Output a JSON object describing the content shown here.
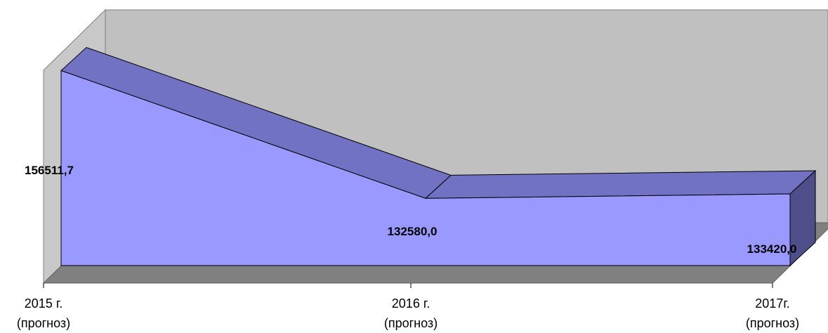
{
  "chart_data": {
    "type": "area3d",
    "categories": [
      "2015 г.\n(прогноз)",
      "2016 г.\n(прогноз)",
      "2017г.\n(прогноз)"
    ],
    "values": [
      156511.7,
      132580.0,
      133420.0
    ],
    "value_labels": [
      "156511,7",
      "132580,0",
      "133420,0"
    ],
    "color": "#9999ff",
    "ylim": [
      120000,
      165000
    ]
  }
}
